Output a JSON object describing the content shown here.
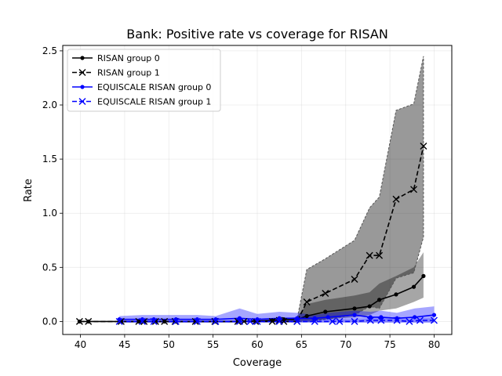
{
  "chart_data": {
    "type": "line",
    "title": "Bank: Positive rate vs coverage for RISAN",
    "xlabel": "Coverage",
    "ylabel": "Rate",
    "xlim": [
      38.0,
      82.0
    ],
    "ylim": [
      -0.12,
      2.55
    ],
    "xticks": [
      40,
      45,
      50,
      55,
      60,
      65,
      70,
      75,
      80
    ],
    "yticks": [
      0.0,
      0.5,
      1.0,
      1.5,
      2.0,
      2.5
    ],
    "xtick_labels": [
      "40",
      "45",
      "50",
      "55",
      "60",
      "65",
      "70",
      "75",
      "80"
    ],
    "ytick_labels": [
      "0.0",
      "0.5",
      "1.0",
      "1.5",
      "2.0",
      "2.5"
    ],
    "grid": true,
    "legend_position": "upper-left",
    "series": [
      {
        "name": "RISAN group 0",
        "color": "#000000",
        "linestyle": "solid",
        "marker": "dot",
        "x": [
          39.9,
          40.9,
          44.6,
          46.6,
          47.2,
          48.5,
          49.5,
          50.7,
          53.0,
          55.2,
          57.8,
          59.8,
          61.7,
          63.0,
          64.5,
          65.6,
          67.7,
          71.0,
          72.7,
          73.8,
          75.7,
          77.7,
          78.8
        ],
        "y": [
          0.0,
          0.0,
          0.0,
          0.0,
          0.0,
          0.0,
          0.0,
          0.0,
          0.0,
          0.0,
          0.0,
          0.005,
          0.01,
          0.02,
          0.02,
          0.05,
          0.09,
          0.12,
          0.14,
          0.2,
          0.25,
          0.32,
          0.42
        ],
        "band_upper": [
          0.0,
          0.0,
          0.0,
          0.0,
          0.0,
          0.0,
          0.0,
          0.0,
          0.0,
          0.0,
          0.0,
          0.01,
          0.02,
          0.03,
          0.04,
          0.16,
          0.2,
          0.24,
          0.27,
          0.35,
          0.42,
          0.5,
          0.64
        ],
        "band_lower": [
          0.0,
          0.0,
          0.0,
          0.0,
          0.0,
          0.0,
          0.0,
          0.0,
          0.0,
          0.0,
          0.0,
          0.0,
          0.0,
          0.005,
          0.005,
          0.01,
          0.02,
          0.04,
          0.06,
          0.1,
          0.12,
          0.18,
          0.22
        ]
      },
      {
        "name": "RISAN group 1",
        "color": "#000000",
        "linestyle": "dashed",
        "marker": "x",
        "x": [
          39.9,
          40.9,
          44.6,
          46.6,
          47.2,
          48.5,
          49.5,
          50.7,
          53.0,
          55.2,
          57.8,
          58.5,
          59.8,
          61.7,
          62.5,
          63.0,
          64.5,
          65.6,
          67.7,
          71.0,
          72.7,
          73.8,
          75.7,
          77.7,
          78.8
        ],
        "y": [
          0.0,
          0.0,
          0.0,
          0.0,
          0.0,
          0.0,
          0.0,
          0.0,
          0.0,
          0.0,
          0.0,
          0.0,
          0.0,
          0.0,
          0.01,
          0.0,
          0.0,
          0.18,
          0.26,
          0.39,
          0.61,
          0.61,
          1.13,
          1.22,
          1.62
        ],
        "band_upper": [
          0.0,
          0.0,
          0.0,
          0.0,
          0.0,
          0.0,
          0.0,
          0.0,
          0.0,
          0.0,
          0.0,
          0.0,
          0.0,
          0.0,
          0.02,
          0.02,
          0.02,
          0.48,
          0.58,
          0.75,
          1.05,
          1.15,
          1.95,
          2.01,
          2.45
        ],
        "band_lower": [
          0.0,
          0.0,
          0.0,
          0.0,
          0.0,
          0.0,
          0.0,
          0.0,
          0.0,
          0.0,
          0.0,
          0.0,
          0.0,
          0.0,
          0.0,
          0.0,
          0.0,
          0.0,
          0.02,
          0.06,
          0.14,
          0.12,
          0.4,
          0.45,
          0.78
        ]
      },
      {
        "name": "EQUISCALE RISAN group 0",
        "color": "#0000ff",
        "linestyle": "solid",
        "marker": "dot",
        "x": [
          44.4,
          47.0,
          48.3,
          50.8,
          53.2,
          55.3,
          58.0,
          60.0,
          62.5,
          64.5,
          66.5,
          68.0,
          71.0,
          72.8,
          74.0,
          75.8,
          77.8,
          80.0
        ],
        "y": [
          0.02,
          0.02,
          0.02,
          0.02,
          0.02,
          0.02,
          0.03,
          0.02,
          0.03,
          0.03,
          0.03,
          0.04,
          0.06,
          0.04,
          0.04,
          0.03,
          0.04,
          0.06
        ],
        "band_upper": [
          0.05,
          0.06,
          0.06,
          0.06,
          0.06,
          0.05,
          0.12,
          0.07,
          0.09,
          0.08,
          0.06,
          0.08,
          0.1,
          0.09,
          0.1,
          0.08,
          0.12,
          0.14
        ],
        "band_lower": [
          -0.01,
          -0.01,
          -0.01,
          -0.01,
          -0.01,
          -0.01,
          -0.01,
          -0.01,
          -0.01,
          -0.01,
          -0.01,
          -0.01,
          -0.01,
          -0.01,
          -0.01,
          -0.01,
          -0.01,
          -0.01
        ]
      },
      {
        "name": "EQUISCALE RISAN group 1",
        "color": "#0000ff",
        "linestyle": "dashed",
        "marker": "x",
        "x": [
          44.4,
          47.0,
          48.3,
          50.8,
          53.2,
          55.3,
          58.0,
          59.2,
          60.0,
          62.5,
          64.5,
          66.5,
          68.5,
          69.3,
          71.0,
          72.8,
          74.0,
          75.8,
          77.2,
          78.4,
          80.0
        ],
        "y": [
          0.0,
          0.0,
          0.0,
          0.0,
          0.0,
          0.0,
          0.0,
          0.0,
          0.0,
          0.0,
          0.0,
          0.0,
          0.0,
          0.0,
          0.0,
          0.01,
          0.01,
          0.01,
          0.0,
          0.01,
          0.01
        ],
        "band_upper": [
          0.01,
          0.01,
          0.01,
          0.01,
          0.01,
          0.01,
          0.01,
          0.01,
          0.01,
          0.01,
          0.01,
          0.02,
          0.02,
          0.02,
          0.02,
          0.03,
          0.03,
          0.03,
          0.02,
          0.03,
          0.03
        ],
        "band_lower": [
          -0.01,
          -0.01,
          -0.01,
          -0.01,
          -0.01,
          -0.01,
          -0.01,
          -0.01,
          -0.01,
          -0.01,
          -0.01,
          -0.01,
          -0.01,
          -0.01,
          -0.01,
          -0.01,
          -0.01,
          -0.01,
          -0.01,
          -0.01,
          -0.01
        ]
      }
    ]
  }
}
